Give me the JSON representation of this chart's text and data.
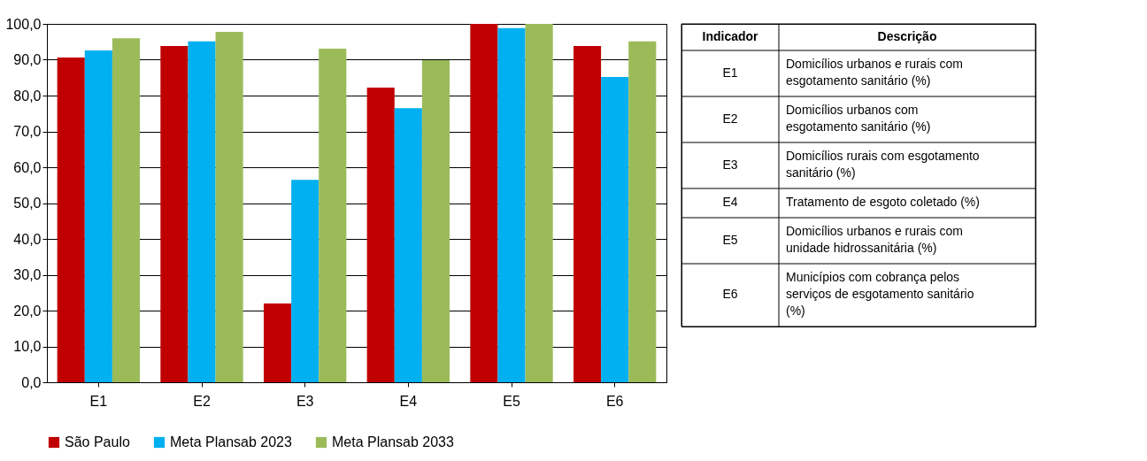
{
  "chart_data": {
    "type": "bar",
    "categories": [
      "E1",
      "E2",
      "E3",
      "E4",
      "E5",
      "E6"
    ],
    "series": [
      {
        "name": "São Paulo",
        "color": "#c00000",
        "values": [
          90.6,
          93.8,
          22.0,
          82.2,
          100.0,
          93.8
        ]
      },
      {
        "name": "Meta Plansab 2023",
        "color": "#00b0f0",
        "values": [
          92.6,
          95.1,
          56.5,
          76.5,
          98.8,
          85.2
        ]
      },
      {
        "name": "Meta Plansab 2033",
        "color": "#9bbb59",
        "values": [
          96.0,
          97.8,
          93.1,
          89.9,
          100.0,
          95.1
        ]
      }
    ],
    "ylim": [
      0,
      100
    ],
    "yticks": [
      {
        "value": 0,
        "label": "0,0"
      },
      {
        "value": 10,
        "label": "10,0"
      },
      {
        "value": 20,
        "label": "20,0"
      },
      {
        "value": 30,
        "label": "30,0"
      },
      {
        "value": 40,
        "label": "40,0"
      },
      {
        "value": 50,
        "label": "50,0"
      },
      {
        "value": 60,
        "label": "60,0"
      },
      {
        "value": 70,
        "label": "70,0"
      },
      {
        "value": 80,
        "label": "80,0"
      },
      {
        "value": 90,
        "label": "90,0"
      },
      {
        "value": 100,
        "label": "100,0"
      }
    ],
    "grid": "y",
    "legend": "bottom",
    "annotations": [
      "Indicador",
      "Descrição",
      "E1",
      "Domicílios urbanos e rurais com esgotamento sanitário (%)",
      "E2",
      "Domicílios urbanos com esgotamento sanitário (%)",
      "E3",
      "Domicílios rurais com esgotamento sanitário (%)",
      "E4",
      "Tratamento de esgoto coletado (%)",
      "E5",
      "Domicílios urbanos e rurais com unidade hidrossanitária (%)",
      "E6",
      "Municípios com cobrança pelos serviços de esgotamento sanitário (%)"
    ]
  }
}
